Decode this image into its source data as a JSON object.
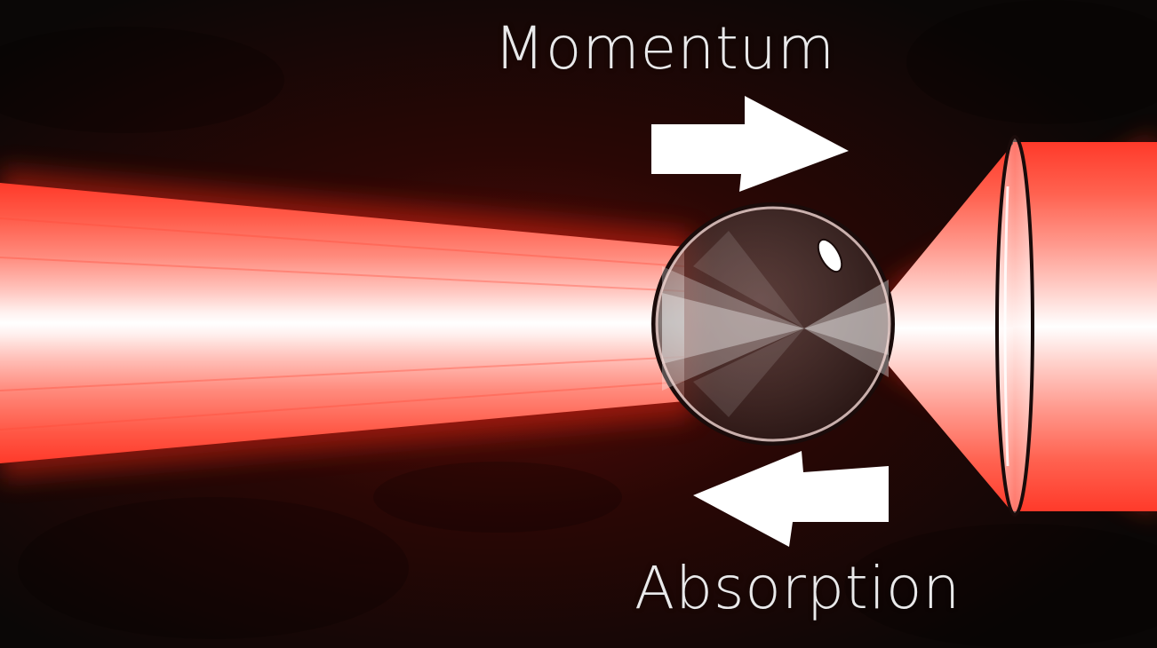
{
  "labels": {
    "momentum": "Momentum",
    "absorption": "Absorption"
  },
  "colors": {
    "background": "#0b0706",
    "beam_outer": "#ff3b2a",
    "beam_core": "#ffffff",
    "arrow": "#ffffff",
    "text": "#e9e9ea"
  }
}
